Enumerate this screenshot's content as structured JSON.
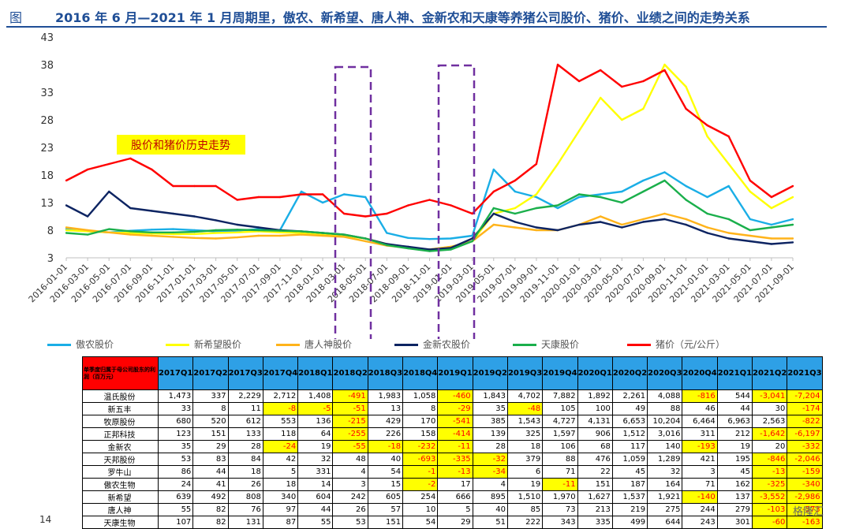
{
  "figure": {
    "label": "图",
    "title": "2016 年 6 月—2021 年 1 月周期里，傲农、新希望、唐人神、金新农和天康等养猪公司股价、猪价、业绩之间的走势关系"
  },
  "annotation": "股价和猪价历史走势",
  "watermark": "格隆汇",
  "stray_tick": "14",
  "chart_data": {
    "type": "line",
    "y_ticks": [
      3,
      8,
      13,
      18,
      23,
      28,
      33,
      38,
      43
    ],
    "ylim": [
      3,
      43
    ],
    "x_ticks": [
      "2016-01-01",
      "2016-03-01",
      "2016-05-01",
      "2016-07-01",
      "2016-09-01",
      "2016-11-01",
      "2017-01-01",
      "2017-03-01",
      "2017-05-01",
      "2017-07-01",
      "2017-09-01",
      "2017-11-01",
      "2018-01-01",
      "2018-03-01",
      "2018-05-01",
      "2018-07-01",
      "2018-09-01",
      "2018-11-01",
      "2019-01-01",
      "2019-03-01",
      "2019-05-01",
      "2019-07-01",
      "2019-09-01",
      "2019-11-01",
      "2020-01-01",
      "2020-03-01",
      "2020-05-01",
      "2020-07-01",
      "2020-09-01",
      "2020-11-01",
      "2021-01-01",
      "2021-03-01",
      "2021-05-01",
      "2021-07-01",
      "2021-09-01"
    ],
    "legend_position": "bottom",
    "highlight_periods": [
      [
        "2018-05-01",
        "2018-07-01"
      ],
      [
        "2019-01-01",
        "2019-03-01"
      ]
    ],
    "series": [
      {
        "name": "傲农股价",
        "color": "#1aaee6",
        "values": [
          8.2,
          7.8,
          7.6,
          7.9,
          8.1,
          8.2,
          8.0,
          7.8,
          7.9,
          8.2,
          8.0,
          15.0,
          13.0,
          14.5,
          14.0,
          7.5,
          6.6,
          6.4,
          6.5,
          7.0,
          19.0,
          15.0,
          14.0,
          12.0,
          14.0,
          14.5,
          15.0,
          17.0,
          18.5,
          16.0,
          14.0,
          16.0,
          10.0,
          9.0,
          10.0
        ]
      },
      {
        "name": "新希望股价",
        "color": "#ffff00",
        "values": [
          8.0,
          7.8,
          7.6,
          7.5,
          7.4,
          7.3,
          7.3,
          7.5,
          7.6,
          7.8,
          7.6,
          7.5,
          7.3,
          7.0,
          6.5,
          5.5,
          4.8,
          4.5,
          5.0,
          6.0,
          11.0,
          12.0,
          14.5,
          20.0,
          26.0,
          32.0,
          28.0,
          30.0,
          38.0,
          34.0,
          25.0,
          20.0,
          15.0,
          12.0,
          14.0
        ]
      },
      {
        "name": "唐人神股价",
        "color": "#ffb31a",
        "values": [
          8.5,
          8.0,
          7.6,
          7.2,
          7.0,
          6.8,
          6.6,
          6.5,
          6.7,
          7.0,
          7.0,
          7.2,
          7.0,
          6.8,
          6.0,
          5.2,
          4.8,
          4.5,
          5.0,
          6.0,
          9.0,
          8.5,
          8.0,
          8.0,
          9.0,
          10.5,
          9.0,
          10.0,
          11.0,
          10.0,
          8.5,
          7.5,
          7.0,
          6.5,
          6.5
        ]
      },
      {
        "name": "金新农股价",
        "color": "#0d2462",
        "values": [
          12.5,
          10.5,
          15.0,
          12.0,
          11.5,
          11.0,
          10.5,
          9.8,
          9.0,
          8.5,
          8.0,
          7.8,
          7.5,
          7.2,
          6.5,
          5.5,
          5.0,
          4.5,
          4.8,
          6.5,
          11.0,
          9.5,
          8.5,
          8.0,
          9.0,
          9.5,
          8.5,
          9.5,
          10.0,
          9.0,
          7.5,
          6.5,
          6.0,
          5.5,
          5.8
        ]
      },
      {
        "name": "天康股价",
        "color": "#1aaf4b",
        "values": [
          7.5,
          7.2,
          8.2,
          7.8,
          7.6,
          7.6,
          7.7,
          8.0,
          8.1,
          8.0,
          7.9,
          7.8,
          7.5,
          7.2,
          6.5,
          5.3,
          4.7,
          4.2,
          4.5,
          6.0,
          12.0,
          11.0,
          12.0,
          12.5,
          14.5,
          14.0,
          13.0,
          15.0,
          17.0,
          13.5,
          11.0,
          10.0,
          8.0,
          8.5,
          9.0
        ]
      },
      {
        "name": "猪价（元/公斤）",
        "color": "#ff0000",
        "values": [
          17.0,
          19.0,
          20.0,
          21.0,
          19.0,
          16.0,
          16.0,
          16.0,
          13.5,
          14.0,
          14.0,
          14.5,
          14.5,
          11.0,
          10.5,
          11.0,
          12.5,
          13.5,
          12.5,
          11.0,
          15.0,
          17.0,
          20.0,
          38.0,
          35.0,
          37.0,
          34.0,
          35.0,
          37.0,
          30.0,
          27.0,
          25.0,
          17.0,
          14.0,
          16.0
        ]
      }
    ]
  },
  "table": {
    "corner": "单季度归属于母公司股东的利润（百万元）",
    "quarters": [
      "2017Q1",
      "2017Q2",
      "2017Q3",
      "2017Q4",
      "2018Q1",
      "2018Q2",
      "2018Q3",
      "2018Q4",
      "2019Q1",
      "2019Q2",
      "2019Q3",
      "2019Q4",
      "2020Q1",
      "2020Q2",
      "2020Q3",
      "2020Q4",
      "2021Q1",
      "2021Q2",
      "2021Q3"
    ],
    "rows": [
      {
        "name": "温氏股份",
        "cells": [
          "1,473",
          "337",
          "2,229",
          "2,712",
          "1,408",
          "-491",
          "1,983",
          "1,058",
          "-460",
          "1,843",
          "4,702",
          "7,882",
          "1,892",
          "2,261",
          "4,088",
          "-816",
          "544",
          "-3,041",
          "-7,204"
        ]
      },
      {
        "name": "新五丰",
        "cells": [
          "33",
          "8",
          "11",
          "-8",
          "-5",
          "-51",
          "13",
          "8",
          "-29",
          "35",
          "-48",
          "105",
          "100",
          "49",
          "88",
          "46",
          "44",
          "30",
          "-174"
        ]
      },
      {
        "name": "牧原股份",
        "cells": [
          "680",
          "520",
          "612",
          "553",
          "136",
          "-215",
          "429",
          "170",
          "-541",
          "385",
          "1,543",
          "4,727",
          "4,131",
          "6,653",
          "10,204",
          "6,464",
          "6,963",
          "2,563",
          "-822"
        ]
      },
      {
        "name": "正邦科技",
        "cells": [
          "123",
          "151",
          "133",
          "118",
          "64",
          "-255",
          "226",
          "158",
          "-414",
          "139",
          "325",
          "1,597",
          "906",
          "1,512",
          "3,016",
          "311",
          "212",
          "-1,642",
          "-6,197"
        ]
      },
      {
        "name": "金新农",
        "cells": [
          "35",
          "29",
          "28",
          "-24",
          "19",
          "-55",
          "-18",
          "-232",
          "-11",
          "28",
          "18",
          "106",
          "68",
          "117",
          "140",
          "-193",
          "19",
          "20",
          "-332"
        ]
      },
      {
        "name": "天邦股份",
        "cells": [
          "53",
          "83",
          "84",
          "42",
          "32",
          "48",
          "40",
          "-693",
          "-335",
          "-32",
          "379",
          "88",
          "476",
          "1,059",
          "1,289",
          "421",
          "195",
          "-846",
          "-2,046"
        ]
      },
      {
        "name": "罗牛山",
        "cells": [
          "86",
          "44",
          "18",
          "5",
          "331",
          "4",
          "54",
          "-1",
          "-13",
          "-34",
          "6",
          "71",
          "22",
          "45",
          "32",
          "3",
          "45",
          "-13",
          "-159"
        ]
      },
      {
        "name": "傲农生物",
        "cells": [
          "24",
          "41",
          "26",
          "18",
          "14",
          "3",
          "15",
          "-2",
          "17",
          "4",
          "19",
          "-11",
          "151",
          "187",
          "164",
          "71",
          "162",
          "-325",
          "-340"
        ]
      },
      {
        "name": "新希望",
        "cells": [
          "639",
          "492",
          "808",
          "340",
          "604",
          "242",
          "605",
          "254",
          "666",
          "895",
          "1,510",
          "1,970",
          "1,627",
          "1,537",
          "1,921",
          "-140",
          "137",
          "-3,552",
          "-2,986"
        ]
      },
      {
        "name": "唐人神",
        "cells": [
          "55",
          "82",
          "76",
          "97",
          "44",
          "26",
          "57",
          "10",
          "5",
          "40",
          "85",
          "73",
          "213",
          "219",
          "275",
          "244",
          "279",
          "-103",
          "-573"
        ]
      },
      {
        "name": "天康生物",
        "cells": [
          "107",
          "82",
          "131",
          "87",
          "55",
          "53",
          "151",
          "54",
          "29",
          "51",
          "222",
          "343",
          "335",
          "499",
          "644",
          "243",
          "301",
          "-60",
          "-163"
        ]
      }
    ]
  }
}
